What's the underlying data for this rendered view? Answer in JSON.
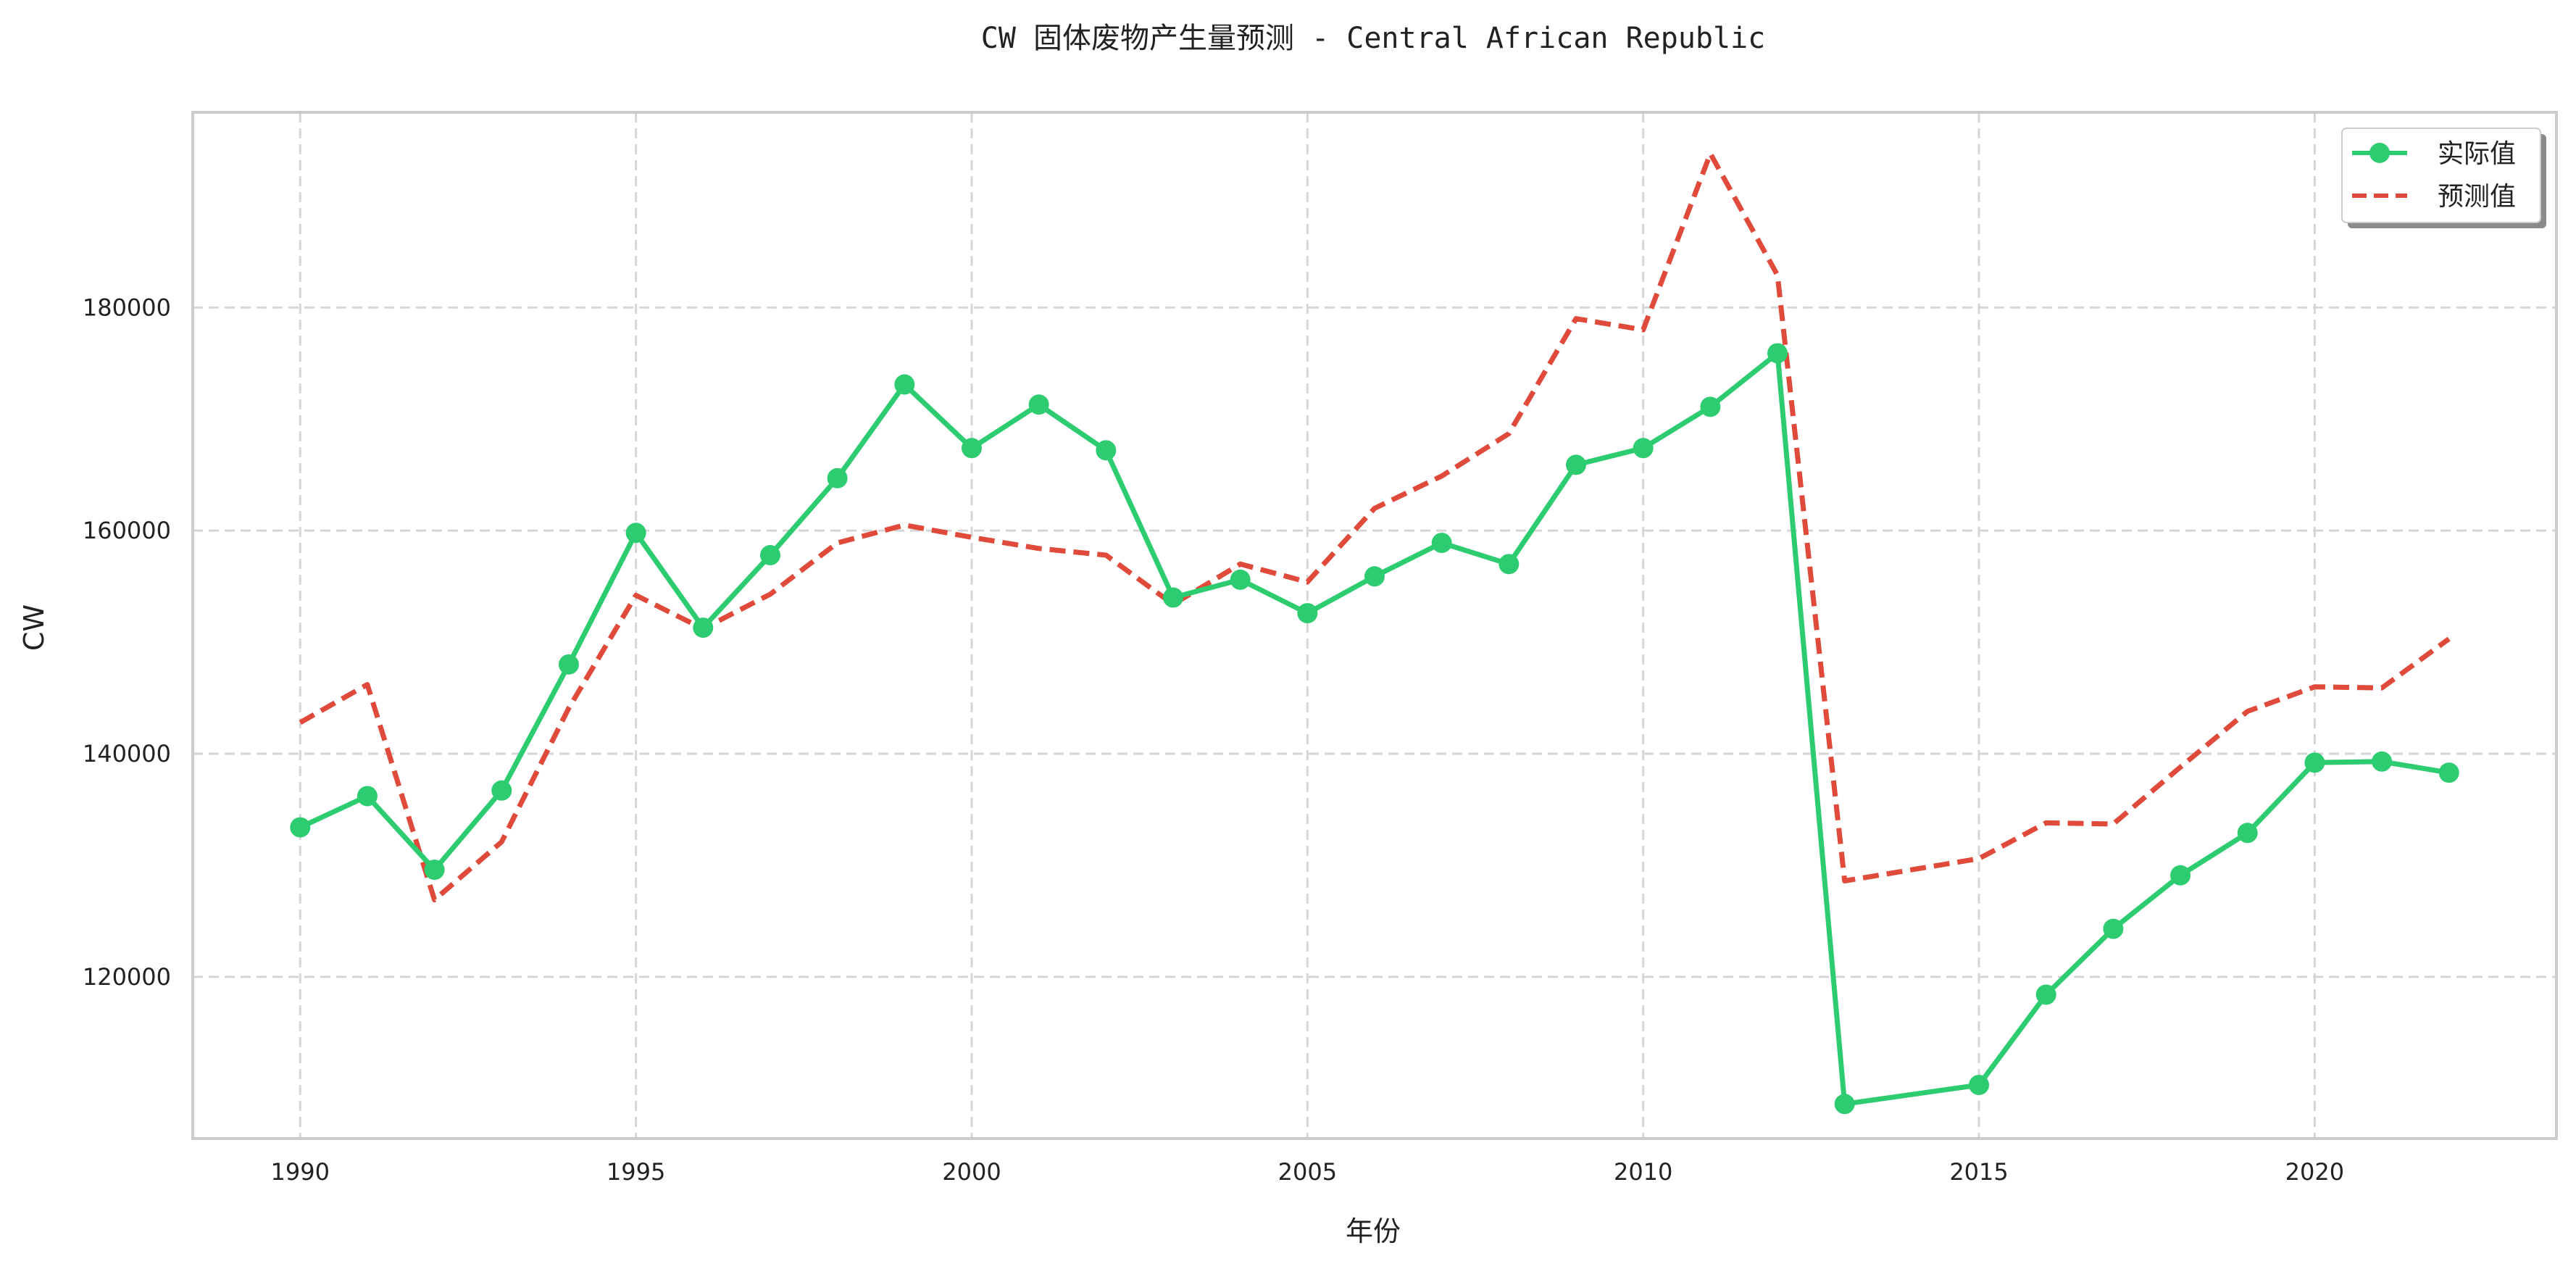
{
  "chart_data": {
    "type": "line",
    "title": "CW 固体废物产生量预测 - Central African Republic",
    "xlabel": "年份",
    "ylabel": "CW",
    "xlim": [
      1988.4,
      2023.6
    ],
    "ylim": [
      105500,
      197500
    ],
    "xticks": [
      1990,
      1995,
      2000,
      2005,
      2010,
      2015,
      2020
    ],
    "yticks": [
      120000,
      140000,
      160000,
      180000
    ],
    "grid": true,
    "legend_position": "top-right",
    "series": [
      {
        "name": "实际值",
        "color": "#2ecc71",
        "style": "solid-with-markers",
        "x": [
          1990,
          1991,
          1992,
          1993,
          1994,
          1995,
          1996,
          1997,
          1998,
          1999,
          2000,
          2001,
          2002,
          2003,
          2004,
          2005,
          2006,
          2007,
          2008,
          2009,
          2010,
          2011,
          2012,
          2013,
          2015,
          2016,
          2017,
          2018,
          2019,
          2020,
          2021,
          2022
        ],
        "values": [
          133400,
          136200,
          129600,
          136700,
          148000,
          159800,
          151300,
          157800,
          164700,
          173100,
          167400,
          171300,
          167200,
          154000,
          155600,
          152600,
          155900,
          158900,
          157000,
          165900,
          167400,
          171100,
          175900,
          108600,
          110300,
          118400,
          124300,
          129100,
          132900,
          139200,
          139300,
          138300
        ]
      },
      {
        "name": "预测值",
        "color": "#e04a3a",
        "style": "dashed",
        "x": [
          1990,
          1991,
          1992,
          1993,
          1994,
          1995,
          1996,
          1997,
          1998,
          1999,
          2000,
          2001,
          2002,
          2003,
          2004,
          2005,
          2006,
          2007,
          2008,
          2009,
          2010,
          2011,
          2012,
          2013,
          2015,
          2016,
          2017,
          2018,
          2019,
          2020,
          2021,
          2022
        ],
        "values": [
          142800,
          146200,
          126900,
          132100,
          144100,
          154200,
          151200,
          154300,
          158900,
          160500,
          159400,
          158400,
          157800,
          153400,
          157000,
          155400,
          162000,
          164900,
          168700,
          179000,
          178000,
          193800,
          182900,
          128600,
          130600,
          133800,
          133700,
          138800,
          143800,
          146000,
          145900,
          150300
        ]
      }
    ]
  }
}
